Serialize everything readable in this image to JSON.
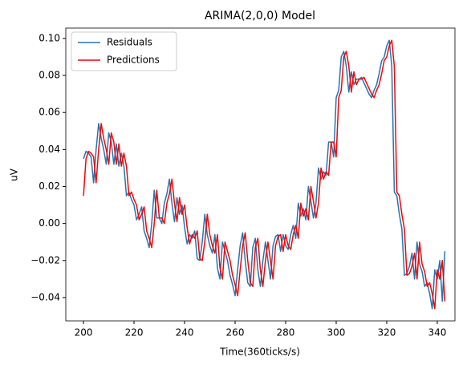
{
  "chart_data": {
    "type": "line",
    "title": "ARIMA(2,0,0) Model",
    "xlabel": "Time(360ticks/s)",
    "ylabel": "uV",
    "x": [
      200,
      201,
      202,
      203,
      204,
      205,
      206,
      207,
      208,
      209,
      210,
      211,
      212,
      213,
      214,
      215,
      216,
      217,
      218,
      219,
      220,
      221,
      222,
      223,
      224,
      225,
      226,
      227,
      228,
      229,
      230,
      231,
      232,
      233,
      234,
      235,
      236,
      237,
      238,
      239,
      240,
      241,
      242,
      243,
      244,
      245,
      246,
      247,
      248,
      249,
      250,
      251,
      252,
      253,
      254,
      255,
      256,
      257,
      258,
      259,
      260,
      261,
      262,
      263,
      264,
      265,
      266,
      267,
      268,
      269,
      270,
      271,
      272,
      273,
      274,
      275,
      276,
      277,
      278,
      279,
      280,
      281,
      282,
      283,
      284,
      285,
      286,
      287,
      288,
      289,
      290,
      291,
      292,
      293,
      294,
      295,
      296,
      297,
      298,
      299,
      300,
      301,
      302,
      303,
      304,
      305,
      306,
      307,
      308,
      309,
      310,
      311,
      312,
      313,
      314,
      315,
      316,
      317,
      318,
      319,
      320,
      321,
      322,
      323,
      324,
      325,
      326,
      327,
      328,
      329,
      330,
      331,
      332,
      333,
      334,
      335,
      336,
      337,
      338,
      339,
      340,
      341,
      342,
      343
    ],
    "series": [
      {
        "name": "Residuals",
        "color": "#1f77b4",
        "values": [
          0.035,
          0.039,
          0.038,
          0.036,
          0.022,
          0.04,
          0.054,
          0.046,
          0.04,
          0.032,
          0.049,
          0.044,
          0.032,
          0.043,
          0.031,
          0.038,
          0.031,
          0.015,
          0.017,
          0.013,
          0.01,
          0.002,
          0.005,
          0.009,
          -0.004,
          -0.008,
          -0.013,
          0.0,
          0.018,
          0.003,
          0.003,
          0.0,
          0.011,
          0.016,
          0.024,
          0.011,
          0.001,
          0.014,
          0.005,
          0.01,
          -0.002,
          -0.011,
          -0.006,
          -0.008,
          -0.004,
          -0.019,
          -0.02,
          -0.01,
          0.005,
          -0.006,
          -0.012,
          -0.016,
          -0.006,
          -0.024,
          -0.03,
          -0.01,
          -0.015,
          -0.02,
          -0.028,
          -0.033,
          -0.039,
          -0.025,
          -0.012,
          -0.005,
          -0.02,
          -0.032,
          -0.034,
          -0.013,
          -0.008,
          -0.025,
          -0.034,
          -0.02,
          -0.01,
          -0.02,
          -0.03,
          -0.012,
          -0.007,
          -0.006,
          -0.015,
          -0.006,
          -0.012,
          -0.014,
          -0.006,
          -0.001,
          -0.008,
          0.011,
          0.004,
          0.008,
          0.002,
          0.02,
          0.012,
          0.003,
          0.011,
          0.03,
          0.024,
          0.028,
          0.026,
          0.044,
          0.044,
          0.036,
          0.068,
          0.072,
          0.09,
          0.093,
          0.085,
          0.071,
          0.082,
          0.075,
          0.078,
          0.078,
          0.079,
          0.076,
          0.073,
          0.07,
          0.068,
          0.072,
          0.075,
          0.081,
          0.088,
          0.09,
          0.096,
          0.099,
          0.085,
          0.017,
          0.015,
          0.005,
          -0.003,
          -0.028,
          -0.027,
          -0.023,
          -0.016,
          -0.03,
          -0.01,
          -0.022,
          -0.026,
          -0.034,
          -0.032,
          -0.038,
          -0.046,
          -0.025,
          -0.03,
          -0.02,
          -0.042,
          -0.015
        ]
      },
      {
        "name": "Predictions",
        "color": "#ff0000",
        "values": [
          0.015,
          0.035,
          0.039,
          0.038,
          0.036,
          0.022,
          0.04,
          0.054,
          0.046,
          0.04,
          0.032,
          0.049,
          0.044,
          0.032,
          0.043,
          0.031,
          0.038,
          0.031,
          0.015,
          0.017,
          0.013,
          0.01,
          0.002,
          0.005,
          0.009,
          -0.004,
          -0.008,
          -0.013,
          0.0,
          0.018,
          0.003,
          0.003,
          0.0,
          0.011,
          0.016,
          0.024,
          0.011,
          0.001,
          0.014,
          0.005,
          0.01,
          -0.002,
          -0.011,
          -0.006,
          -0.008,
          -0.004,
          -0.019,
          -0.02,
          -0.01,
          0.005,
          -0.006,
          -0.012,
          -0.016,
          -0.006,
          -0.024,
          -0.03,
          -0.01,
          -0.015,
          -0.02,
          -0.028,
          -0.033,
          -0.039,
          -0.025,
          -0.012,
          -0.005,
          -0.02,
          -0.032,
          -0.034,
          -0.013,
          -0.008,
          -0.025,
          -0.034,
          -0.02,
          -0.01,
          -0.02,
          -0.03,
          -0.012,
          -0.007,
          -0.006,
          -0.015,
          -0.006,
          -0.012,
          -0.014,
          -0.006,
          -0.001,
          -0.008,
          0.011,
          0.004,
          0.008,
          0.002,
          0.02,
          0.012,
          0.003,
          0.011,
          0.03,
          0.024,
          0.028,
          0.026,
          0.044,
          0.044,
          0.036,
          0.068,
          0.072,
          0.09,
          0.093,
          0.085,
          0.071,
          0.082,
          0.075,
          0.078,
          0.078,
          0.079,
          0.076,
          0.073,
          0.07,
          0.068,
          0.072,
          0.075,
          0.081,
          0.088,
          0.09,
          0.096,
          0.099,
          0.085,
          0.017,
          0.015,
          0.005,
          -0.003,
          -0.028,
          -0.027,
          -0.023,
          -0.016,
          -0.03,
          -0.01,
          -0.022,
          -0.026,
          -0.034,
          -0.032,
          -0.038,
          -0.046,
          -0.025,
          -0.03,
          -0.02,
          -0.042
        ]
      }
    ],
    "xlim": [
      193,
      347
    ],
    "xticks": [
      200,
      220,
      240,
      260,
      280,
      300,
      320,
      340
    ],
    "ylim": [
      -0.0526,
      0.1056
    ],
    "yticks": [
      {
        "value": -0.04,
        "label": "−0.04"
      },
      {
        "value": -0.02,
        "label": "−0.02"
      },
      {
        "value": 0,
        "label": "0.00"
      },
      0.02,
      0.04,
      0.06,
      0.08,
      {
        "value": 0.1,
        "label": "0.10"
      }
    ],
    "legend": "upper left"
  }
}
